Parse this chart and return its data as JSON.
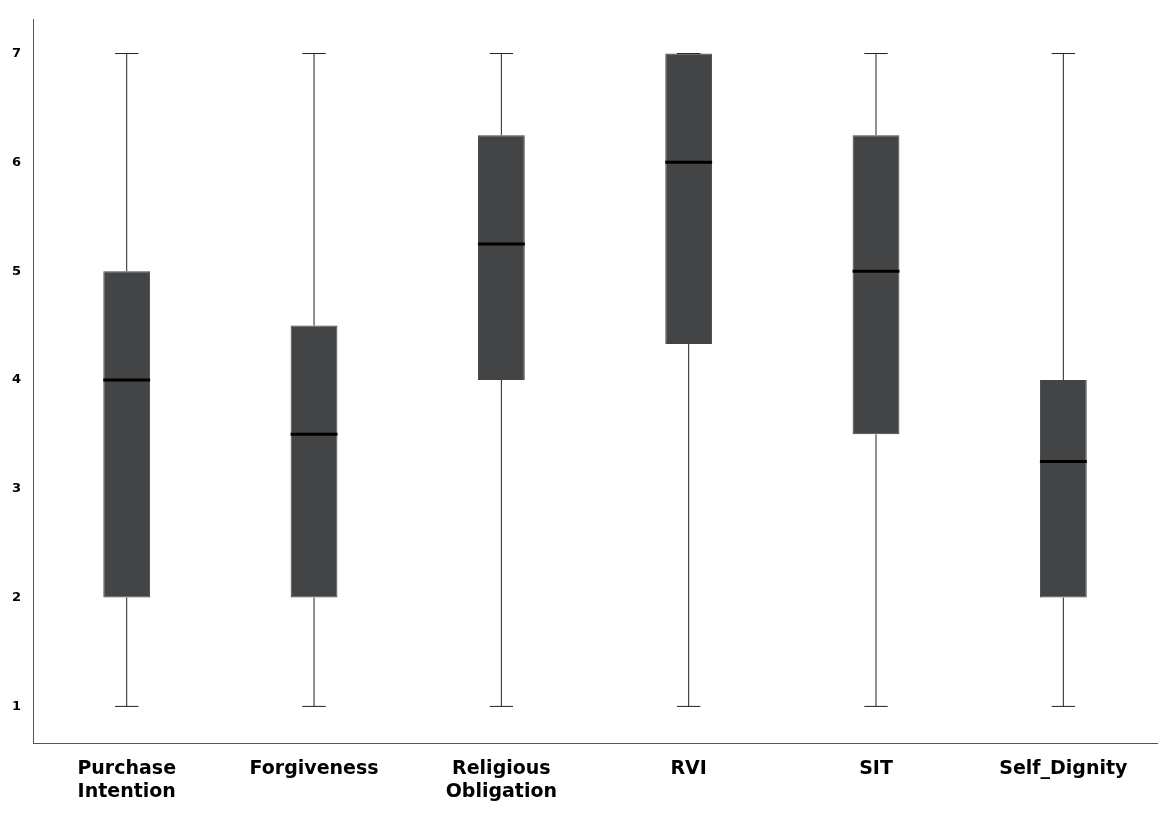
{
  "chart_data": {
    "type": "box",
    "categories": [
      "Purchase Intention",
      "Forgiveness",
      "Religious Obligation",
      "RVI",
      "SIT",
      "Self_Dignity"
    ],
    "boxes": [
      {
        "low": 1,
        "q1": 2,
        "median": 4,
        "q3": 5,
        "high": 7
      },
      {
        "low": 1,
        "q1": 2,
        "median": 3.5,
        "q3": 4.5,
        "high": 7
      },
      {
        "low": 1,
        "q1": 4,
        "median": 5.25,
        "q3": 6.25,
        "high": 7
      },
      {
        "low": 1,
        "q1": 4.33,
        "median": 6,
        "q3": 7,
        "high": 7
      },
      {
        "low": 1,
        "q1": 3.5,
        "median": 5,
        "q3": 6.25,
        "high": 7
      },
      {
        "low": 1,
        "q1": 2,
        "median": 3.25,
        "q3": 4,
        "high": 7
      }
    ],
    "color": "#434446",
    "ylim": [
      0.66,
      7.31
    ],
    "yticks": [
      1,
      2,
      3,
      4,
      5,
      6,
      7
    ],
    "grid": false,
    "legend": false
  }
}
